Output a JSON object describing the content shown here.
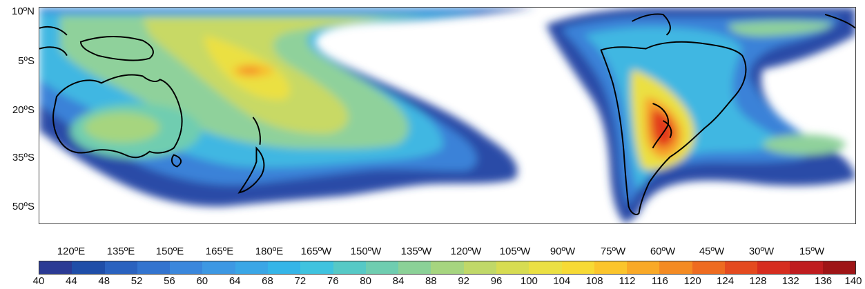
{
  "map": {
    "lat_labels": [
      "10ºN",
      "5ºS",
      "20ºS",
      "35ºS",
      "50ºS"
    ],
    "lon_labels": [
      "120ºE",
      "135ºE",
      "150ºE",
      "165ºE",
      "180ºE",
      "165ºW",
      "150ºW",
      "135ºW",
      "120ºW",
      "105ºW",
      "90ºW",
      "75ºW",
      "60ºW",
      "45ºW",
      "30ºW",
      "15ºW"
    ],
    "colorbar_ticks": [
      "40",
      "44",
      "48",
      "52",
      "56",
      "60",
      "64",
      "68",
      "72",
      "76",
      "80",
      "84",
      "88",
      "92",
      "96",
      "100",
      "104",
      "108",
      "112",
      "116",
      "120",
      "124",
      "128",
      "132",
      "136",
      "140"
    ],
    "colorbar_colors": [
      "#2b3a94",
      "#1f4ea8",
      "#2a62bf",
      "#3374cf",
      "#3a87dc",
      "#3d98e3",
      "#3aa6e6",
      "#35b5e8",
      "#3fc3df",
      "#56c9c6",
      "#6fcdb0",
      "#8bd197",
      "#a6d57f",
      "#c0d868",
      "#d7dc52",
      "#ebe043",
      "#f7da35",
      "#fbc52c",
      "#f9a927",
      "#f48b23",
      "#ee6b20",
      "#e44a1f",
      "#d62d1f",
      "#bf1c1f",
      "#9e1416"
    ]
  }
}
